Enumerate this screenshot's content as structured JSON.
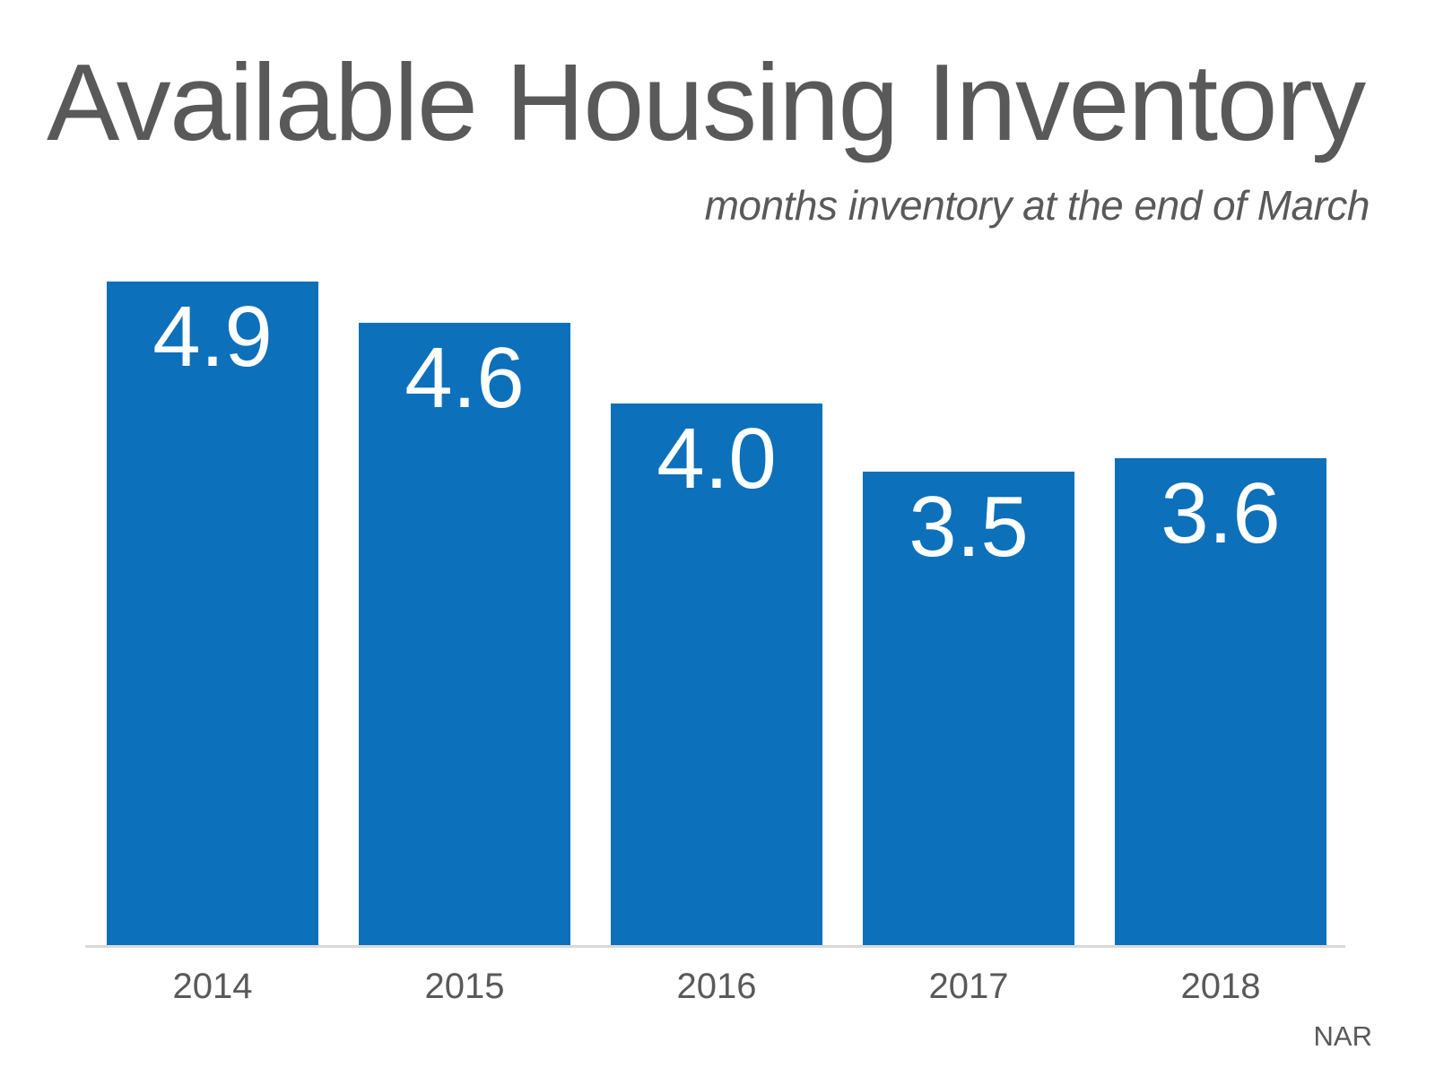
{
  "slide": {
    "title": "Available Housing Inventory",
    "subtitle": "months inventory at the end of March",
    "source": "NAR"
  },
  "chart_data": {
    "type": "bar",
    "title": "Available Housing Inventory",
    "subtitle": "months inventory at the end of March",
    "source": "NAR",
    "categories": [
      "2014",
      "2015",
      "2016",
      "2017",
      "2018"
    ],
    "values": [
      4.9,
      4.6,
      4.0,
      3.5,
      3.6
    ],
    "value_labels": [
      "4.9",
      "4.6",
      "4.0",
      "3.5",
      "3.6"
    ],
    "xlabel": "",
    "ylabel": "",
    "ylim": [
      0,
      5.2
    ],
    "grid": false,
    "legend": false,
    "y_axis_visible": false,
    "value_label_position": "inside-top",
    "colors": {
      "bar": "#0c70ba",
      "value_label": "#ffffff",
      "title_text": "#595959",
      "subtitle_text": "#595959",
      "tick_label": "#595959",
      "axis_line": "#d9d9d9",
      "background": "#ffffff"
    }
  }
}
